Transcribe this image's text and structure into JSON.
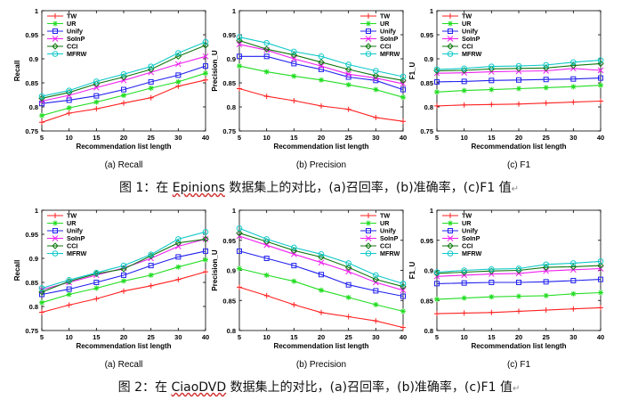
{
  "figures": [
    {
      "caption_parts": {
        "prefix": "图 1：在 ",
        "dataset": "Epinions",
        "suffix": " 数据集上的对比，(a)召回率，(b)准确率，(c)F1 值"
      },
      "panels": [
        {
          "subcaption": "(a) Recall",
          "chart_data": {
            "type": "line",
            "xlabel": "Recommendation list length",
            "ylabel": "Recall",
            "x": [
              5,
              10,
              15,
              20,
              25,
              30,
              40
            ],
            "xticks": [
              "5",
              "10",
              "15",
              "20",
              "25",
              "30",
              "40"
            ],
            "ylim": [
              0.75,
              1.0
            ],
            "yticks": [
              0.75,
              0.8,
              0.85,
              0.9,
              0.95,
              1.0
            ],
            "ytick_labels": [
              "0.75",
              "0.8",
              "0.85",
              "0.9",
              "0.95",
              "1"
            ],
            "legend": "top-left",
            "series": [
              {
                "name": "TW",
                "values": [
                  0.768,
                  0.787,
                  0.796,
                  0.808,
                  0.819,
                  0.843,
                  0.856
                ]
              },
              {
                "name": "UR",
                "values": [
                  0.782,
                  0.798,
                  0.81,
                  0.824,
                  0.839,
                  0.852,
                  0.87
                ]
              },
              {
                "name": "Unify",
                "values": [
                  0.807,
                  0.814,
                  0.823,
                  0.836,
                  0.852,
                  0.866,
                  0.885
                ]
              },
              {
                "name": "SoInP",
                "values": [
                  0.812,
                  0.824,
                  0.84,
                  0.855,
                  0.872,
                  0.889,
                  0.905
                ]
              },
              {
                "name": "CCI",
                "values": [
                  0.818,
                  0.83,
                  0.848,
                  0.862,
                  0.878,
                  0.905,
                  0.928
                ]
              },
              {
                "name": "MFRW",
                "values": [
                  0.822,
                  0.834,
                  0.853,
                  0.868,
                  0.884,
                  0.912,
                  0.935
                ]
              }
            ]
          }
        },
        {
          "subcaption": "(b) Precision",
          "chart_data": {
            "type": "line",
            "xlabel": "Recommendation list length",
            "ylabel": "Precision_U",
            "x": [
              5,
              10,
              15,
              20,
              25,
              30,
              40
            ],
            "xticks": [
              "5",
              "10",
              "15",
              "20",
              "25",
              "30",
              "40"
            ],
            "ylim": [
              0.75,
              1.0
            ],
            "yticks": [
              0.75,
              0.8,
              0.85,
              0.9,
              0.95,
              1.0
            ],
            "ytick_labels": [
              "0.75",
              "0.8",
              "0.85",
              "0.9",
              "0.95",
              "1"
            ],
            "legend": "top-right",
            "series": [
              {
                "name": "TW",
                "values": [
                  0.838,
                  0.822,
                  0.813,
                  0.802,
                  0.795,
                  0.778,
                  0.77
                ]
              },
              {
                "name": "UR",
                "values": [
                  0.885,
                  0.873,
                  0.864,
                  0.856,
                  0.846,
                  0.836,
                  0.82
                ]
              },
              {
                "name": "Unify",
                "values": [
                  0.905,
                  0.905,
                  0.89,
                  0.878,
                  0.862,
                  0.855,
                  0.836
                ]
              },
              {
                "name": "SoInP",
                "values": [
                  0.93,
                  0.918,
                  0.9,
                  0.885,
                  0.868,
                  0.86,
                  0.848
                ]
              },
              {
                "name": "CCI",
                "values": [
                  0.938,
                  0.92,
                  0.908,
                  0.893,
                  0.878,
                  0.865,
                  0.855
                ]
              },
              {
                "name": "MFRW",
                "values": [
                  0.945,
                  0.933,
                  0.915,
                  0.905,
                  0.888,
                  0.875,
                  0.863
                ]
              }
            ]
          }
        },
        {
          "subcaption": "(c) F1",
          "chart_data": {
            "type": "line",
            "xlabel": "Recommendation list length",
            "ylabel": "F1_U",
            "x": [
              5,
              10,
              15,
              20,
              25,
              30,
              40
            ],
            "xticks": [
              "5",
              "10",
              "15",
              "20",
              "25",
              "30",
              "40"
            ],
            "ylim": [
              0.75,
              1.0
            ],
            "yticks": [
              0.75,
              0.8,
              0.85,
              0.9,
              0.95,
              1.0
            ],
            "ytick_labels": [
              "0.75",
              "0.8",
              "0.85",
              "0.9",
              "0.95",
              "1"
            ],
            "legend": "top-left",
            "series": [
              {
                "name": "TW",
                "values": [
                  0.802,
                  0.804,
                  0.805,
                  0.806,
                  0.808,
                  0.81,
                  0.812
                ]
              },
              {
                "name": "UR",
                "values": [
                  0.831,
                  0.834,
                  0.836,
                  0.838,
                  0.84,
                  0.842,
                  0.845
                ]
              },
              {
                "name": "Unify",
                "values": [
                  0.852,
                  0.853,
                  0.855,
                  0.856,
                  0.857,
                  0.858,
                  0.86
                ]
              },
              {
                "name": "SoInP",
                "values": [
                  0.87,
                  0.871,
                  0.873,
                  0.874,
                  0.875,
                  0.88,
                  0.876
                ]
              },
              {
                "name": "CCI",
                "values": [
                  0.875,
                  0.876,
                  0.879,
                  0.88,
                  0.881,
                  0.886,
                  0.89
                ]
              },
              {
                "name": "MFRW",
                "values": [
                  0.878,
                  0.88,
                  0.884,
                  0.885,
                  0.887,
                  0.893,
                  0.897
                ]
              }
            ]
          }
        }
      ]
    },
    {
      "caption_parts": {
        "prefix": "图 2：在 ",
        "dataset": "CiaoDVD",
        "suffix": " 数据集上的对比，(a)召回率，(b)准确率，(c)F1 值"
      },
      "panels": [
        {
          "subcaption": "(a) Recall",
          "chart_data": {
            "type": "line",
            "xlabel": "Recommendation list length",
            "ylabel": "Recall",
            "x": [
              5,
              10,
              15,
              20,
              25,
              30,
              40
            ],
            "xticks": [
              "5",
              "10",
              "15",
              "20",
              "25",
              "30",
              "40"
            ],
            "ylim": [
              0.75,
              1.0
            ],
            "yticks": [
              0.75,
              0.8,
              0.85,
              0.9,
              0.95,
              1.0
            ],
            "ytick_labels": [
              "0.75",
              "0.8",
              "0.85",
              "0.9",
              "0.95",
              "1"
            ],
            "legend": "top-left",
            "series": [
              {
                "name": "TW",
                "values": [
                  0.788,
                  0.803,
                  0.816,
                  0.832,
                  0.843,
                  0.856,
                  0.872
                ]
              },
              {
                "name": "UR",
                "values": [
                  0.808,
                  0.825,
                  0.838,
                  0.853,
                  0.865,
                  0.882,
                  0.897
                ]
              },
              {
                "name": "Unify",
                "values": [
                  0.825,
                  0.836,
                  0.85,
                  0.865,
                  0.885,
                  0.903,
                  0.915
                ]
              },
              {
                "name": "SoInP",
                "values": [
                  0.835,
                  0.85,
                  0.865,
                  0.88,
                  0.9,
                  0.925,
                  0.94
                ]
              },
              {
                "name": "CCI",
                "values": [
                  0.83,
                  0.852,
                  0.868,
                  0.878,
                  0.905,
                  0.932,
                  0.94
                ]
              },
              {
                "name": "MFRW",
                "values": [
                  0.838,
                  0.855,
                  0.87,
                  0.885,
                  0.908,
                  0.94,
                  0.955
                ]
              }
            ]
          }
        },
        {
          "subcaption": "(b) Precision",
          "chart_data": {
            "type": "line",
            "xlabel": "Recommendation list length",
            "ylabel": "Precision_U",
            "x": [
              5,
              10,
              15,
              20,
              25,
              30,
              40
            ],
            "xticks": [
              "5",
              "10",
              "15",
              "20",
              "25",
              "30",
              "40"
            ],
            "ylim": [
              0.8,
              1.0
            ],
            "yticks": [
              0.8,
              0.85,
              0.9,
              0.95,
              1.0
            ],
            "ytick_labels": [
              "0.8",
              "0.85",
              "0.9",
              "0.95",
              "1"
            ],
            "legend": "top-right",
            "series": [
              {
                "name": "TW",
                "values": [
                  0.872,
                  0.858,
                  0.843,
                  0.83,
                  0.823,
                  0.816,
                  0.805
                ]
              },
              {
                "name": "UR",
                "values": [
                  0.903,
                  0.892,
                  0.882,
                  0.867,
                  0.855,
                  0.843,
                  0.832
                ]
              },
              {
                "name": "Unify",
                "values": [
                  0.932,
                  0.92,
                  0.908,
                  0.893,
                  0.876,
                  0.866,
                  0.857
                ]
              },
              {
                "name": "SoInP",
                "values": [
                  0.957,
                  0.942,
                  0.927,
                  0.913,
                  0.898,
                  0.88,
                  0.867
                ]
              },
              {
                "name": "CCI",
                "values": [
                  0.962,
                  0.948,
                  0.933,
                  0.922,
                  0.905,
                  0.885,
                  0.873
                ]
              },
              {
                "name": "MFRW",
                "values": [
                  0.97,
                  0.952,
                  0.938,
                  0.927,
                  0.912,
                  0.892,
                  0.878
                ]
              }
            ]
          }
        },
        {
          "subcaption": "(c) F1",
          "chart_data": {
            "type": "line",
            "xlabel": "Recommendation list length",
            "ylabel": "F1_U",
            "x": [
              5,
              10,
              15,
              20,
              25,
              30,
              40
            ],
            "xticks": [
              "5",
              "10",
              "15",
              "20",
              "25",
              "30",
              "40"
            ],
            "ylim": [
              0.8,
              1.0
            ],
            "yticks": [
              0.8,
              0.85,
              0.9,
              0.95,
              1.0
            ],
            "ytick_labels": [
              "0.8",
              "0.85",
              "0.9",
              "0.95",
              "1"
            ],
            "legend": "top-left",
            "series": [
              {
                "name": "TW",
                "values": [
                  0.828,
                  0.829,
                  0.83,
                  0.832,
                  0.834,
                  0.836,
                  0.838
                ]
              },
              {
                "name": "UR",
                "values": [
                  0.852,
                  0.854,
                  0.856,
                  0.857,
                  0.858,
                  0.861,
                  0.863
                ]
              },
              {
                "name": "Unify",
                "values": [
                  0.878,
                  0.879,
                  0.88,
                  0.88,
                  0.881,
                  0.883,
                  0.885
                ]
              },
              {
                "name": "SoInP",
                "values": [
                  0.89,
                  0.892,
                  0.894,
                  0.895,
                  0.899,
                  0.901,
                  0.903
                ]
              },
              {
                "name": "CCI",
                "values": [
                  0.895,
                  0.897,
                  0.899,
                  0.9,
                  0.905,
                  0.906,
                  0.908
                ]
              },
              {
                "name": "MFRW",
                "values": [
                  0.897,
                  0.9,
                  0.902,
                  0.903,
                  0.91,
                  0.912,
                  0.915
                ]
              }
            ]
          }
        }
      ]
    }
  ],
  "series_styles": [
    {
      "name": "TW",
      "color": "#ff2020",
      "marker": "plus"
    },
    {
      "name": "UR",
      "color": "#20dd20",
      "marker": "star"
    },
    {
      "name": "Unify",
      "color": "#2020ee",
      "marker": "square"
    },
    {
      "name": "SoInP",
      "color": "#ee20ee",
      "marker": "cross"
    },
    {
      "name": "CCI",
      "color": "#107710",
      "marker": "diamond"
    },
    {
      "name": "MFRW",
      "color": "#10c8c8",
      "marker": "circle"
    }
  ]
}
